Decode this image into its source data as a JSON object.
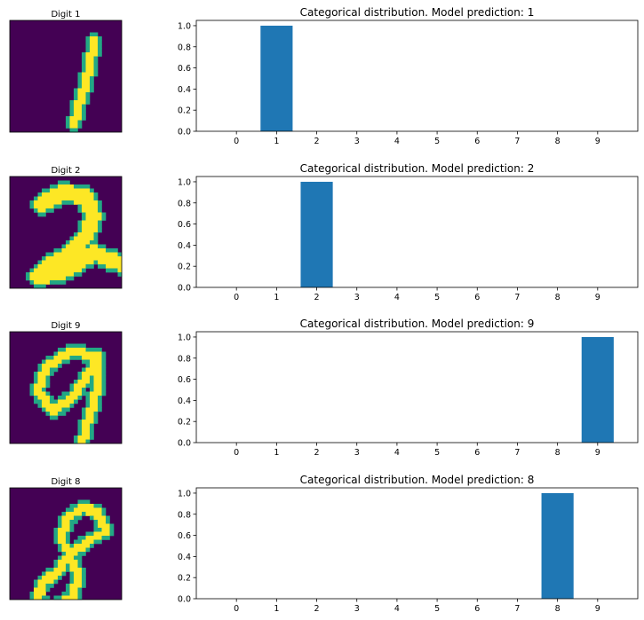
{
  "chart_data": [
    {
      "type": "bar",
      "digit_title": "Digit 1",
      "digit": 1,
      "title": "Categorical distribution. Model prediction: 1",
      "categories": [
        "0",
        "1",
        "2",
        "3",
        "4",
        "5",
        "6",
        "7",
        "8",
        "9"
      ],
      "values": [
        0,
        1.0,
        0,
        0,
        0,
        0,
        0,
        0,
        0,
        0
      ],
      "yticks": [
        "0.0",
        "0.2",
        "0.4",
        "0.6",
        "0.8",
        "1.0"
      ],
      "ylim": [
        0,
        1.05
      ],
      "color": "#1f77b4"
    },
    {
      "type": "bar",
      "digit_title": "Digit 2",
      "digit": 2,
      "title": "Categorical distribution. Model prediction: 2",
      "categories": [
        "0",
        "1",
        "2",
        "3",
        "4",
        "5",
        "6",
        "7",
        "8",
        "9"
      ],
      "values": [
        0,
        0,
        1.0,
        0,
        0,
        0,
        0,
        0,
        0,
        0
      ],
      "yticks": [
        "0.0",
        "0.2",
        "0.4",
        "0.6",
        "0.8",
        "1.0"
      ],
      "ylim": [
        0,
        1.05
      ],
      "color": "#1f77b4"
    },
    {
      "type": "bar",
      "digit_title": "Digit 9",
      "digit": 9,
      "title": "Categorical distribution. Model prediction: 9",
      "categories": [
        "0",
        "1",
        "2",
        "3",
        "4",
        "5",
        "6",
        "7",
        "8",
        "9"
      ],
      "values": [
        0,
        0,
        0,
        0,
        0,
        0,
        0,
        0,
        0,
        1.0
      ],
      "yticks": [
        "0.0",
        "0.2",
        "0.4",
        "0.6",
        "0.8",
        "1.0"
      ],
      "ylim": [
        0,
        1.05
      ],
      "color": "#1f77b4"
    },
    {
      "type": "bar",
      "digit_title": "Digit 8",
      "digit": 8,
      "title": "Categorical distribution. Model prediction: 8",
      "categories": [
        "0",
        "1",
        "2",
        "3",
        "4",
        "5",
        "6",
        "7",
        "8",
        "9"
      ],
      "values": [
        0,
        0,
        0,
        0,
        0,
        0,
        0,
        0,
        1.0,
        0
      ],
      "yticks": [
        "0.0",
        "0.2",
        "0.4",
        "0.6",
        "0.8",
        "1.0"
      ],
      "ylim": [
        0,
        1.05
      ],
      "color": "#1f77b4"
    }
  ],
  "colors": {
    "image_background": "#440154",
    "image_stroke": "#fde725",
    "image_edge": "#22a884"
  }
}
